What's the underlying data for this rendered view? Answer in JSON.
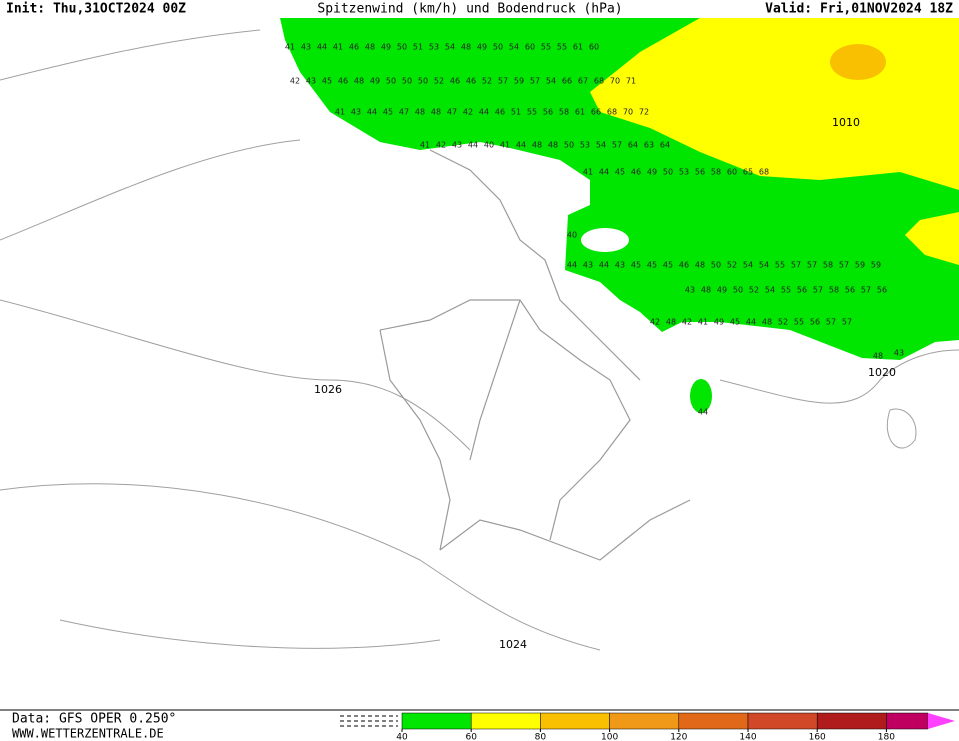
{
  "header": {
    "init": "Init: Thu,31OCT2024 00Z",
    "title": "Spitzenwind (km/h) und Bodendruck (hPa)",
    "valid": "Valid: Fri,01NOV2024 18Z"
  },
  "isobar_labels": [
    "1026",
    "1024",
    "1020",
    "1010"
  ],
  "wind_rows": [
    [
      41,
      43,
      44,
      41,
      46,
      48,
      49,
      50,
      51,
      53,
      54,
      48,
      49,
      50,
      54,
      60,
      55,
      55,
      61,
      60
    ],
    [
      42,
      43,
      45,
      46,
      48,
      49,
      50,
      50,
      50,
      52,
      46,
      46,
      52,
      57,
      59,
      57,
      54,
      66,
      67,
      68,
      70,
      71
    ],
    [
      41,
      43,
      44,
      45,
      47,
      48,
      48,
      47,
      42,
      44,
      46,
      51,
      55,
      56,
      58,
      61,
      66,
      68,
      70,
      72
    ],
    [
      41,
      42,
      43,
      44,
      40,
      41,
      44,
      48,
      48,
      50,
      53,
      54,
      57,
      64,
      63,
      64
    ],
    [
      41,
      44,
      45,
      46,
      49,
      50,
      53,
      56,
      58,
      60,
      65,
      68
    ],
    [
      44,
      43,
      44,
      43,
      45,
      45,
      45,
      46,
      48,
      50,
      52,
      54,
      54,
      55,
      57,
      57,
      58,
      57,
      59,
      59
    ],
    [
      43,
      48,
      49,
      50,
      52,
      54,
      55,
      56,
      57,
      58,
      56,
      57,
      56
    ],
    [
      42,
      48,
      42,
      41,
      49,
      45,
      44,
      48,
      52,
      55,
      56,
      57,
      57
    ]
  ],
  "wind_singles": [
    40,
    44,
    48,
    43
  ],
  "legend": {
    "ticks": [
      40,
      60,
      80,
      100,
      120,
      140,
      160,
      180
    ],
    "colors": [
      "#00e600",
      "#ffff00",
      "#f8c000",
      "#f09818",
      "#e06818",
      "#d04828",
      "#b01c1c",
      "#c00060"
    ]
  },
  "footer": {
    "data": "Data: GFS OPER 0.250°",
    "site": "WWW.WETTERZENTRALE.DE"
  }
}
